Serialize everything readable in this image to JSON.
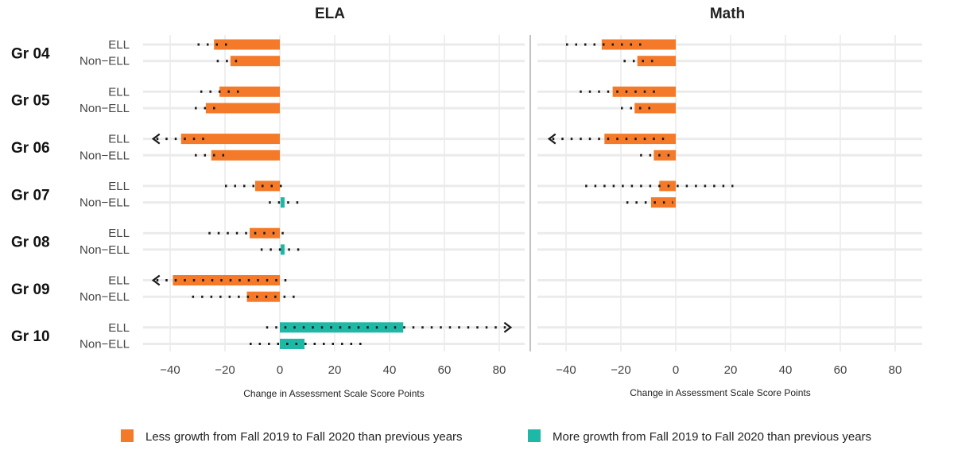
{
  "chart_data": {
    "type": "bar",
    "subtype": "range-bar-with-dotted-intervals",
    "facets": [
      "ELA",
      "Math"
    ],
    "grades": [
      "Gr 04",
      "Gr 05",
      "Gr 06",
      "Gr 07",
      "Gr 08",
      "Gr 09",
      "Gr 10"
    ],
    "groups": [
      "ELL",
      "Non−ELL"
    ],
    "xlabel": "Change in Assessment Scale Score Points",
    "xlim": [
      -50,
      85
    ],
    "xticks": [
      -40,
      -20,
      0,
      20,
      40,
      60,
      80
    ],
    "xtick_labels": [
      "−40",
      "−20",
      "0",
      "20",
      "40",
      "60",
      "80"
    ],
    "grid": true,
    "colors": {
      "less": "#f47a2a",
      "more": "#1eb8a6",
      "dots": "#1a1a1a",
      "grid": "#ebebeb",
      "divider": "#999999"
    },
    "legend": {
      "position": "bottom",
      "items": [
        {
          "key": "less",
          "label": "Less growth from Fall 2019 to Fall 2020 than previous years"
        },
        {
          "key": "more",
          "label": "More growth from Fall 2019 to Fall 2020 than previous years"
        }
      ]
    },
    "series": [
      {
        "facet": "ELA",
        "grade": "Gr 04",
        "group": "ELL",
        "value": -24,
        "ci_low": -30,
        "ci_high": -17,
        "direction": "less"
      },
      {
        "facet": "ELA",
        "grade": "Gr 04",
        "group": "Non−ELL",
        "value": -18,
        "ci_low": -23,
        "ci_high": -14,
        "direction": "less"
      },
      {
        "facet": "ELA",
        "grade": "Gr 05",
        "group": "ELL",
        "value": -22,
        "ci_low": -29,
        "ci_high": -13,
        "direction": "less"
      },
      {
        "facet": "ELA",
        "grade": "Gr 05",
        "group": "Non−ELL",
        "value": -27,
        "ci_low": -31,
        "ci_high": -21,
        "direction": "less"
      },
      {
        "facet": "ELA",
        "grade": "Gr 06",
        "group": "ELL",
        "value": -36,
        "ci_low": -45,
        "ci_high": -26,
        "direction": "less",
        "arrow": "left"
      },
      {
        "facet": "ELA",
        "grade": "Gr 06",
        "group": "Non−ELL",
        "value": -25,
        "ci_low": -31,
        "ci_high": -19,
        "direction": "less"
      },
      {
        "facet": "ELA",
        "grade": "Gr 07",
        "group": "ELL",
        "value": -9,
        "ci_low": -20,
        "ci_high": 2,
        "direction": "less"
      },
      {
        "facet": "ELA",
        "grade": "Gr 07",
        "group": "Non−ELL",
        "value": 1,
        "ci_low": -4,
        "ci_high": 9,
        "direction": "more"
      },
      {
        "facet": "ELA",
        "grade": "Gr 08",
        "group": "ELL",
        "value": -11,
        "ci_low": -26,
        "ci_high": 2,
        "direction": "less"
      },
      {
        "facet": "ELA",
        "grade": "Gr 08",
        "group": "Non−ELL",
        "value": 1,
        "ci_low": -7,
        "ci_high": 9,
        "direction": "more"
      },
      {
        "facet": "ELA",
        "grade": "Gr 09",
        "group": "ELL",
        "value": -39,
        "ci_low": -45,
        "ci_high": 5,
        "direction": "less",
        "arrow": "left"
      },
      {
        "facet": "ELA",
        "grade": "Gr 09",
        "group": "Non−ELL",
        "value": -12,
        "ci_low": -32,
        "ci_high": 8,
        "direction": "less"
      },
      {
        "facet": "ELA",
        "grade": "Gr 10",
        "group": "ELL",
        "value": 45,
        "ci_low": -5,
        "ci_high": 83,
        "direction": "more",
        "arrow": "right"
      },
      {
        "facet": "ELA",
        "grade": "Gr 10",
        "group": "Non−ELL",
        "value": 9,
        "ci_low": -11,
        "ci_high": 30,
        "direction": "more"
      },
      {
        "facet": "Math",
        "grade": "Gr 04",
        "group": "ELL",
        "value": -27,
        "ci_low": -40,
        "ci_high": -11,
        "direction": "less"
      },
      {
        "facet": "Math",
        "grade": "Gr 04",
        "group": "Non−ELL",
        "value": -14,
        "ci_low": -19,
        "ci_high": -8,
        "direction": "less"
      },
      {
        "facet": "Math",
        "grade": "Gr 05",
        "group": "ELL",
        "value": -23,
        "ci_low": -35,
        "ci_high": -7,
        "direction": "less"
      },
      {
        "facet": "Math",
        "grade": "Gr 05",
        "group": "Non−ELL",
        "value": -15,
        "ci_low": -20,
        "ci_high": -9,
        "direction": "less"
      },
      {
        "facet": "Math",
        "grade": "Gr 06",
        "group": "ELL",
        "value": -26,
        "ci_low": -45,
        "ci_high": -3,
        "direction": "less",
        "arrow": "left"
      },
      {
        "facet": "Math",
        "grade": "Gr 06",
        "group": "Non−ELL",
        "value": -8,
        "ci_low": -13,
        "ci_high": -1,
        "direction": "less"
      },
      {
        "facet": "Math",
        "grade": "Gr 07",
        "group": "ELL",
        "value": -6,
        "ci_low": -33,
        "ci_high": 21,
        "direction": "less"
      },
      {
        "facet": "Math",
        "grade": "Gr 07",
        "group": "Non−ELL",
        "value": -9,
        "ci_low": -18,
        "ci_high": -1,
        "direction": "less"
      }
    ]
  }
}
